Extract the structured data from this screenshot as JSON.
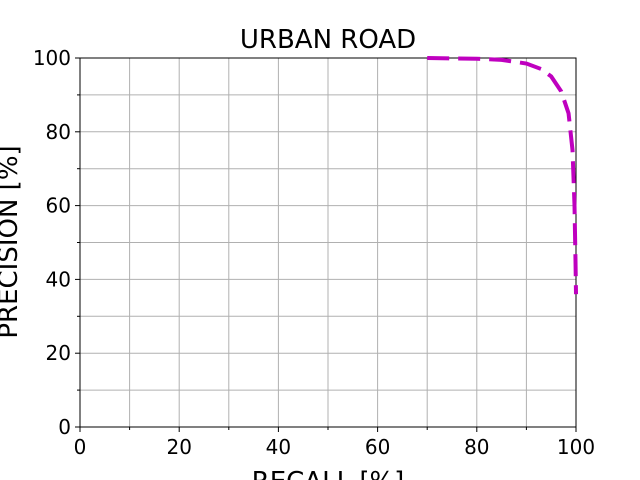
{
  "chart_data": {
    "type": "line",
    "title": "URBAN ROAD",
    "x_label": "RECALL [%]",
    "y_label": "PRECISION [%]",
    "xlim": [
      0,
      100
    ],
    "ylim": [
      0,
      100
    ],
    "xticks": [
      0,
      20,
      40,
      60,
      80,
      100
    ],
    "yticks": [
      0,
      20,
      40,
      60,
      80,
      100
    ],
    "x_minor_ticks": [
      10,
      30,
      50,
      70,
      90
    ],
    "y_minor_ticks": [
      10,
      30,
      50,
      70,
      90
    ],
    "grid": true,
    "line_style": "dashed",
    "series": [
      {
        "color": "#bf00bf",
        "x": [
          70,
          80,
          85,
          90,
          93,
          95,
          97,
          98.5,
          99.3,
          99.7,
          99.9,
          100
        ],
        "values": [
          100,
          99.8,
          99.5,
          98.5,
          97,
          95,
          91,
          85,
          75,
          60,
          45,
          36
        ]
      }
    ]
  }
}
